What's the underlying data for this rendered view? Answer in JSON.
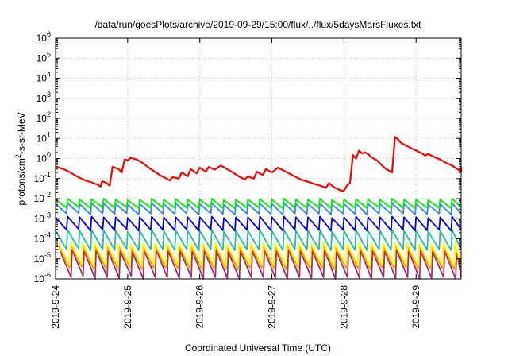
{
  "chart_data": {
    "type": "line",
    "title": "/data/run/goesPlots/archive/2019-09-29/15:00/flux/../flux/5daysMarsFluxes.txt",
    "xlabel": "Coordinated Universal Time (UTC)",
    "ylabel": {
      "prefix": "protons/cm",
      "superscript": "2",
      "suffix": "-s-sr-MeV"
    },
    "y_scale": "log",
    "ylim": [
      1e-06,
      1000000.0
    ],
    "y_ticks": [
      {
        "value": 1e-06,
        "base": "10",
        "exp": "-6"
      },
      {
        "value": 1e-05,
        "base": "10",
        "exp": "-5"
      },
      {
        "value": 0.0001,
        "base": "10",
        "exp": "-4"
      },
      {
        "value": 0.001,
        "base": "10",
        "exp": "-3"
      },
      {
        "value": 0.01,
        "base": "10",
        "exp": "-2"
      },
      {
        "value": 0.1,
        "base": "10",
        "exp": "-1"
      },
      {
        "value": 1,
        "base": "10",
        "exp": "0"
      },
      {
        "value": 10,
        "base": "10",
        "exp": "1"
      },
      {
        "value": 100,
        "base": "10",
        "exp": "2"
      },
      {
        "value": 1000,
        "base": "10",
        "exp": "3"
      },
      {
        "value": 10000,
        "base": "10",
        "exp": "4"
      },
      {
        "value": 100000,
        "base": "10",
        "exp": "5"
      },
      {
        "value": 1000000,
        "base": "10",
        "exp": "6"
      }
    ],
    "x_scale": "date",
    "xlim": [
      "2019-09-24",
      "2019-09-29T15:00"
    ],
    "x_ticks": [
      "2019-9-24",
      "2019-9-25",
      "2019-9-26",
      "2019-9-27",
      "2019-9-28",
      "2019-9-29"
    ],
    "grid": true,
    "series": [
      {
        "color": "#ff0000",
        "points": [
          [
            "2019-09-24T00:00",
            0.38
          ],
          [
            "2019-09-24T02:00",
            0.32
          ],
          [
            "2019-09-24T04:00",
            0.24
          ],
          [
            "2019-09-24T06:00",
            0.16
          ],
          [
            "2019-09-24T08:00",
            0.11
          ],
          [
            "2019-09-24T10:00",
            0.08
          ],
          [
            "2019-09-24T12:00",
            0.065
          ],
          [
            "2019-09-24T14:00",
            0.05
          ],
          [
            "2019-09-24T15:00",
            0.04
          ],
          [
            "2019-09-24T15:30",
            0.075
          ],
          [
            "2019-09-24T17:00",
            0.06
          ],
          [
            "2019-09-24T18:00",
            0.045
          ],
          [
            "2019-09-24T19:00",
            0.38
          ],
          [
            "2019-09-24T21:00",
            0.3
          ],
          [
            "2019-09-24T22:00",
            0.2
          ],
          [
            "2019-09-24T23:00",
            0.9
          ],
          [
            "2019-09-25T00:00",
            0.8
          ],
          [
            "2019-09-25T01:00",
            1.1
          ],
          [
            "2019-09-25T03:00",
            0.9
          ],
          [
            "2019-09-25T05:00",
            0.6
          ],
          [
            "2019-09-25T07:00",
            0.35
          ],
          [
            "2019-09-25T09:00",
            0.22
          ],
          [
            "2019-09-25T11:00",
            0.14
          ],
          [
            "2019-09-25T13:00",
            0.1
          ],
          [
            "2019-09-25T14:00",
            0.08
          ],
          [
            "2019-09-25T15:00",
            0.12
          ],
          [
            "2019-09-25T17:00",
            0.1
          ],
          [
            "2019-09-25T18:00",
            0.2
          ],
          [
            "2019-09-25T20:00",
            0.13
          ],
          [
            "2019-09-25T21:00",
            0.3
          ],
          [
            "2019-09-25T23:00",
            0.18
          ],
          [
            "2019-09-26T00:00",
            0.35
          ],
          [
            "2019-09-26T02:00",
            0.22
          ],
          [
            "2019-09-26T03:00",
            0.38
          ],
          [
            "2019-09-26T05:00",
            0.28
          ],
          [
            "2019-09-26T07:00",
            0.45
          ],
          [
            "2019-09-26T09:00",
            0.3
          ],
          [
            "2019-09-26T11:00",
            0.2
          ],
          [
            "2019-09-26T13:00",
            0.13
          ],
          [
            "2019-09-26T15:00",
            0.09
          ],
          [
            "2019-09-26T16:00",
            0.13
          ],
          [
            "2019-09-26T18:00",
            0.1
          ],
          [
            "2019-09-26T19:00",
            0.22
          ],
          [
            "2019-09-26T21:00",
            0.15
          ],
          [
            "2019-09-26T22:00",
            0.3
          ],
          [
            "2019-09-27T00:00",
            0.2
          ],
          [
            "2019-09-27T02:00",
            0.35
          ],
          [
            "2019-09-27T04:00",
            0.25
          ],
          [
            "2019-09-27T06:00",
            0.17
          ],
          [
            "2019-09-27T08:00",
            0.12
          ],
          [
            "2019-09-27T10:00",
            0.085
          ],
          [
            "2019-09-27T12:00",
            0.07
          ],
          [
            "2019-09-27T14:00",
            0.055
          ],
          [
            "2019-09-27T16:00",
            0.045
          ],
          [
            "2019-09-27T18:00",
            0.035
          ],
          [
            "2019-09-27T19:00",
            0.06
          ],
          [
            "2019-09-27T20:00",
            0.045
          ],
          [
            "2019-09-27T21:00",
            0.035
          ],
          [
            "2019-09-27T22:00",
            0.03
          ],
          [
            "2019-09-27T23:00",
            0.025
          ],
          [
            "2019-09-28T00:00",
            0.025
          ],
          [
            "2019-09-28T01:00",
            0.045
          ],
          [
            "2019-09-28T02:00",
            0.06
          ],
          [
            "2019-09-28T03:00",
            1.5
          ],
          [
            "2019-09-28T04:00",
            1.0
          ],
          [
            "2019-09-28T05:00",
            2.5
          ],
          [
            "2019-09-28T06:00",
            1.8
          ],
          [
            "2019-09-28T07:00",
            2.0
          ],
          [
            "2019-09-28T08:00",
            1.7
          ],
          [
            "2019-09-28T09:00",
            1.2
          ],
          [
            "2019-09-28T11:00",
            0.8
          ],
          [
            "2019-09-28T13:00",
            0.4
          ],
          [
            "2019-09-28T14:00",
            0.3
          ],
          [
            "2019-09-28T15:00",
            0.25
          ],
          [
            "2019-09-28T16:00",
            0.2
          ],
          [
            "2019-09-28T17:00",
            12
          ],
          [
            "2019-09-28T18:00",
            9
          ],
          [
            "2019-09-28T19:00",
            6
          ],
          [
            "2019-09-28T20:00",
            5
          ],
          [
            "2019-09-28T22:00",
            3.5
          ],
          [
            "2019-09-29T00:00",
            2.5
          ],
          [
            "2019-09-29T02:00",
            1.8
          ],
          [
            "2019-09-29T03:00",
            1.4
          ],
          [
            "2019-09-29T04:00",
            1.7
          ],
          [
            "2019-09-29T06:00",
            1.2
          ],
          [
            "2019-09-29T08:00",
            0.9
          ],
          [
            "2019-09-29T10:00",
            0.6
          ],
          [
            "2019-09-29T12:00",
            0.45
          ],
          [
            "2019-09-29T13:00",
            0.35
          ],
          [
            "2019-09-29T14:00",
            0.28
          ],
          [
            "2019-09-29T15:00",
            0.22
          ],
          [
            "2019-09-29T16:00",
            0.3
          ],
          [
            "2019-09-29T17:00",
            0.22
          ],
          [
            "2019-09-29T18:00",
            0.35
          ],
          [
            "2019-09-29T19:00",
            0.25
          ]
        ]
      },
      {
        "color": "#00ee00",
        "sawtooth": {
          "start": "2019-09-24T00:00",
          "step_hours": 4,
          "peaks": [
            0.009,
            0.01,
            0.009,
            0.0095,
            0.01,
            0.009,
            0.0085,
            0.009,
            0.01,
            0.009,
            0.0095,
            0.009,
            0.009,
            0.01,
            0.0085,
            0.009,
            0.009,
            0.0095,
            0.009,
            0.01,
            0.009,
            0.009,
            0.01,
            0.0085,
            0.009,
            0.0095,
            0.009,
            0.009,
            0.01,
            0.009,
            0.009,
            0.0085,
            0.009,
            0.01
          ],
          "troughs": [
            0.0035,
            0.0038,
            0.0033,
            0.0036,
            0.0034,
            0.0037,
            0.0033,
            0.0035,
            0.0036,
            0.0034,
            0.0035,
            0.0033,
            0.0036,
            0.0034,
            0.0033,
            0.0035,
            0.0036,
            0.0034,
            0.0033,
            0.0035,
            0.0034,
            0.0036,
            0.0033,
            0.0035,
            0.0034,
            0.0033,
            0.0036,
            0.0034,
            0.0035,
            0.0033,
            0.0034,
            0.0035,
            0.0033,
            0.0036
          ]
        }
      },
      {
        "color": "#2e8ce8",
        "sawtooth": {
          "start": "2019-09-24T00:00",
          "step_hours": 4,
          "peaks": [
            0.0055,
            0.006,
            0.0055,
            0.006,
            0.0058,
            0.0055,
            0.005,
            0.0055,
            0.006,
            0.0055,
            0.0058,
            0.0055,
            0.0055,
            0.006,
            0.005,
            0.0055,
            0.0055,
            0.0058,
            0.0055,
            0.006,
            0.0055,
            0.0055,
            0.006,
            0.005,
            0.0055,
            0.0058,
            0.0055,
            0.0055,
            0.006,
            0.0055,
            0.0055,
            0.005,
            0.0055,
            0.006
          ],
          "troughs": [
            0.0018,
            0.0019,
            0.0016,
            0.0018,
            0.0017,
            0.0019,
            0.0016,
            0.0018,
            0.0018,
            0.0017,
            0.0018,
            0.0016,
            0.0018,
            0.0017,
            0.0016,
            0.0018,
            0.0018,
            0.0017,
            0.0016,
            0.0018,
            0.0017,
            0.0018,
            0.0016,
            0.0018,
            0.0017,
            0.0016,
            0.0018,
            0.0017,
            0.0018,
            0.0016,
            0.0017,
            0.0018,
            0.0016,
            0.0018
          ]
        }
      },
      {
        "color": "#0000ee",
        "sawtooth": {
          "start": "2019-09-24T00:00",
          "step_hours": 4,
          "peaks": [
            0.0012,
            0.0013,
            0.0012,
            0.0013,
            0.0012,
            0.0012,
            0.0011,
            0.0012,
            0.0013,
            0.0012,
            0.0012,
            0.0012,
            0.0012,
            0.0013,
            0.0011,
            0.0012,
            0.0012,
            0.0013,
            0.0012,
            0.0013,
            0.0012,
            0.0012,
            0.0013,
            0.0011,
            0.0012,
            0.0013,
            0.0012,
            0.0012,
            0.0013,
            0.0012,
            0.0012,
            0.0011,
            0.0012,
            0.0013
          ],
          "troughs": [
            0.00028,
            0.0003,
            0.00025,
            0.00028,
            0.00026,
            0.0003,
            0.00025,
            0.00028,
            0.00028,
            0.00026,
            0.00028,
            0.00025,
            0.00028,
            0.00026,
            0.00025,
            0.00028,
            0.00028,
            0.00026,
            0.00025,
            0.00028,
            0.00026,
            0.00028,
            0.00025,
            0.00028,
            0.00026,
            0.00025,
            0.00028,
            0.00026,
            0.00028,
            0.00025,
            0.00026,
            0.00028,
            0.00025,
            0.00028
          ]
        }
      },
      {
        "color": "#20c0a0",
        "sawtooth": {
          "start": "2019-09-24T00:00",
          "step_hours": 4,
          "peaks": [
            0.00025,
            0.00028,
            0.00025,
            0.00027,
            0.00026,
            0.00025,
            0.00023,
            0.00025,
            0.00028,
            0.00025,
            0.00026,
            0.00025,
            0.00025,
            0.00028,
            0.00023,
            0.00025,
            0.00025,
            0.00027,
            0.00025,
            0.00028,
            0.00025,
            0.00025,
            0.00028,
            0.00023,
            0.00025,
            0.00027,
            0.00025,
            0.00025,
            0.00028,
            0.00025,
            0.00025,
            0.00023,
            0.00025,
            0.00028
          ],
          "troughs": [
            3e-05,
            3.2e-05,
            2.7e-05,
            3e-05,
            2.8e-05,
            3.2e-05,
            2.7e-05,
            3e-05,
            3e-05,
            2.8e-05,
            3e-05,
            2.7e-05,
            3e-05,
            2.8e-05,
            2.7e-05,
            3e-05,
            3e-05,
            2.8e-05,
            2.7e-05,
            3e-05,
            2.8e-05,
            3e-05,
            2.7e-05,
            3e-05,
            2.8e-05,
            2.7e-05,
            3e-05,
            2.8e-05,
            3e-05,
            2.7e-05,
            2.8e-05,
            3e-05,
            2.7e-05,
            3e-05
          ]
        }
      },
      {
        "color": "#ffff00",
        "sawtooth": {
          "start": "2019-09-24T01:00",
          "step_hours": 4,
          "peaks": [
            6e-05,
            6.5e-05,
            6e-05,
            6.2e-05,
            6e-05,
            5.8e-05,
            5.5e-05,
            6e-05,
            6.5e-05,
            6e-05,
            6e-05,
            6e-05,
            6e-05,
            6.5e-05,
            5.5e-05,
            6e-05,
            6e-05,
            6.2e-05,
            6e-05,
            6.5e-05,
            6e-05,
            6e-05,
            6.5e-05,
            5.5e-05,
            6e-05,
            6.2e-05,
            6e-05,
            6e-05,
            6.5e-05,
            6e-05,
            6e-05,
            5.5e-05,
            6e-05,
            6.5e-05
          ],
          "troughs": [
            5e-06,
            5.5e-06,
            4.5e-06,
            5e-06,
            4.8e-06,
            5.5e-06,
            4.5e-06,
            5e-06,
            5e-06,
            4.8e-06,
            5e-06,
            4.5e-06,
            5e-06,
            4.8e-06,
            4.5e-06,
            5e-06,
            5e-06,
            4.8e-06,
            4.5e-06,
            5e-06,
            4.8e-06,
            5e-06,
            4.5e-06,
            5e-06,
            4.8e-06,
            4.5e-06,
            5e-06,
            4.8e-06,
            5e-06,
            4.5e-06,
            4.8e-06,
            5e-06,
            4.5e-06,
            5e-06
          ]
        }
      },
      {
        "color": "#ff9900",
        "sawtooth": {
          "start": "2019-09-24T01:00",
          "step_hours": 4,
          "peaks": [
            4.5e-05,
            5e-05,
            4.5e-05,
            4.8e-05,
            4.5e-05,
            4.4e-05,
            4.2e-05,
            4.5e-05,
            5e-05,
            4.5e-05,
            4.5e-05,
            4.5e-05,
            4.5e-05,
            5e-05,
            4.2e-05,
            4.5e-05,
            4.5e-05,
            4.8e-05,
            4.5e-05,
            5e-05,
            4.5e-05,
            4.5e-05,
            5e-05,
            4.2e-05,
            4.5e-05,
            4.8e-05,
            4.5e-05,
            4.5e-05,
            5e-05,
            4.5e-05,
            4.5e-05,
            4.2e-05,
            4.5e-05,
            5e-05
          ],
          "troughs": [
            3.5e-06,
            4e-06,
            3e-06,
            3.5e-06,
            3.3e-06,
            4e-06,
            3e-06,
            3.5e-06,
            3.5e-06,
            3.3e-06,
            3.5e-06,
            3e-06,
            3.5e-06,
            3.3e-06,
            3e-06,
            3.5e-06,
            3.5e-06,
            3.3e-06,
            3e-06,
            3.5e-06,
            3.3e-06,
            3.5e-06,
            3e-06,
            3.5e-06,
            3.3e-06,
            3e-06,
            3.5e-06,
            3.3e-06,
            3.5e-06,
            3e-06,
            3.3e-06,
            3.5e-06,
            3e-06,
            3.5e-06
          ]
        }
      },
      {
        "color": "#a0306a",
        "sawtooth": {
          "start": "2019-09-24T01:30",
          "step_hours": 4,
          "peaks": [
            2.5e-05,
            2.8e-05,
            2.5e-05,
            2.7e-05,
            2.5e-05,
            2.4e-05,
            2.3e-05,
            2.5e-05,
            2.8e-05,
            2.5e-05,
            2.5e-05,
            2.5e-05,
            2.5e-05,
            2.8e-05,
            2.3e-05,
            2.5e-05,
            2.5e-05,
            2.7e-05,
            2.5e-05,
            2.8e-05,
            2.5e-05,
            2.5e-05,
            2.8e-05,
            2.3e-05,
            2.5e-05,
            2.7e-05,
            2.5e-05,
            2.5e-05,
            2.8e-05,
            2.5e-05,
            2.5e-05,
            2.3e-05,
            2.5e-05,
            2.8e-05
          ],
          "troughs": [
            1.2e-06,
            1.4e-06,
            1e-06,
            1.2e-06,
            1.1e-06,
            1.4e-06,
            1e-06,
            1.2e-06,
            1.2e-06,
            1.1e-06,
            1.2e-06,
            1e-06,
            1.2e-06,
            1.1e-06,
            1e-06,
            1.2e-06,
            1.2e-06,
            1.1e-06,
            1e-06,
            1.2e-06,
            1.1e-06,
            1.2e-06,
            1e-06,
            1.2e-06,
            1.1e-06,
            1e-06,
            1.2e-06,
            1.1e-06,
            1.2e-06,
            1e-06,
            1.1e-06,
            1.2e-06,
            1e-06,
            1.2e-06
          ]
        }
      }
    ]
  }
}
